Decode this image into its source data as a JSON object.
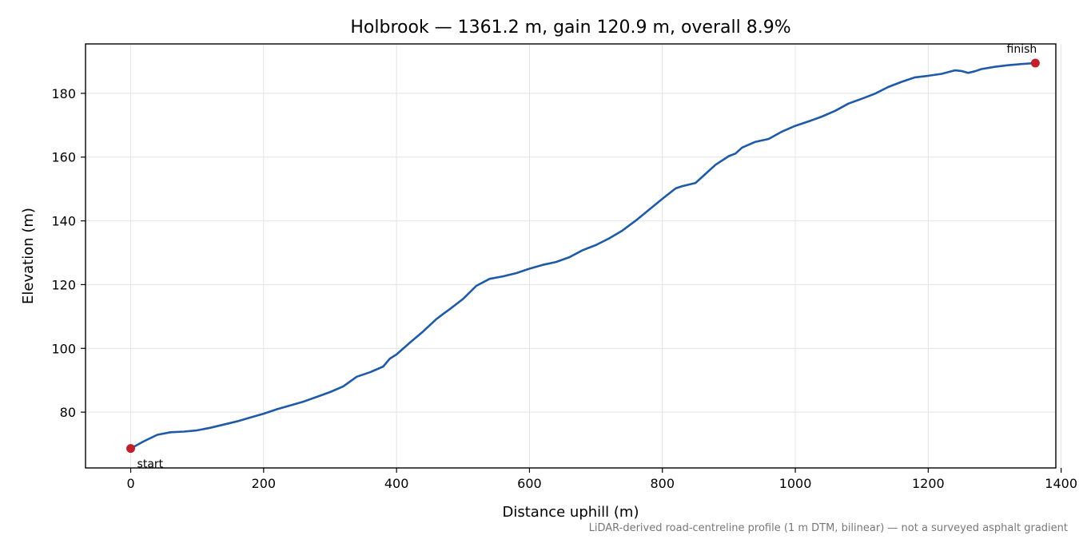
{
  "chart_data": {
    "type": "line",
    "title": "Holbrook — 1361.2 m, gain 120.9 m, overall 8.9%",
    "xlabel": "Distance uphill (m)",
    "ylabel": "Elevation (m)",
    "xlim": [
      -68,
      1392
    ],
    "ylim": [
      62.5,
      195.5
    ],
    "xticks": [
      0,
      200,
      400,
      600,
      800,
      1000,
      1200,
      1400
    ],
    "yticks": [
      80,
      100,
      120,
      140,
      160,
      180
    ],
    "grid": true,
    "note": "LiDAR-derived road-centreline profile (1 m DTM, bilinear) — not a surveyed asphalt gradient",
    "series": [
      {
        "color": "#1f5aa6",
        "x": [
          0,
          20,
          40,
          60,
          80,
          100,
          120,
          140,
          160,
          180,
          200,
          220,
          240,
          260,
          280,
          300,
          320,
          340,
          360,
          380,
          390,
          400,
          420,
          440,
          460,
          470,
          480,
          500,
          520,
          540,
          560,
          580,
          600,
          620,
          640,
          660,
          680,
          700,
          720,
          740,
          760,
          780,
          800,
          820,
          830,
          850,
          860,
          880,
          900,
          910,
          920,
          940,
          960,
          980,
          1000,
          1020,
          1040,
          1060,
          1080,
          1100,
          1120,
          1140,
          1160,
          1180,
          1200,
          1220,
          1240,
          1250,
          1260,
          1270,
          1280,
          1300,
          1320,
          1340,
          1361.2
        ],
        "y": [
          68.6,
          70.9,
          72.9,
          73.7,
          73.9,
          74.3,
          75.1,
          76.1,
          77.1,
          78.3,
          79.5,
          80.9,
          82.1,
          83.3,
          84.8,
          86.3,
          88.1,
          91.1,
          92.5,
          94.3,
          96.8,
          98.1,
          101.8,
          105.3,
          109.2,
          110.8,
          112.3,
          115.5,
          119.6,
          121.8,
          122.6,
          123.6,
          125.0,
          126.2,
          127.1,
          128.6,
          130.8,
          132.4,
          134.5,
          137.0,
          140.1,
          143.5,
          146.9,
          150.2,
          150.9,
          151.9,
          153.8,
          157.6,
          160.3,
          161.1,
          163.0,
          164.8,
          165.7,
          168.0,
          169.8,
          171.2,
          172.7,
          174.5,
          176.8,
          178.3,
          179.9,
          182.0,
          183.6,
          185.0,
          185.5,
          186.1,
          187.2,
          187.0,
          186.4,
          186.9,
          187.6,
          188.3,
          188.8,
          189.2,
          189.5
        ]
      }
    ],
    "markers": [
      {
        "x": 0,
        "y": 68.6,
        "label": "start",
        "color": "#c0202a"
      },
      {
        "x": 1361.2,
        "y": 189.5,
        "label": "finish",
        "color": "#c0202a"
      }
    ]
  }
}
